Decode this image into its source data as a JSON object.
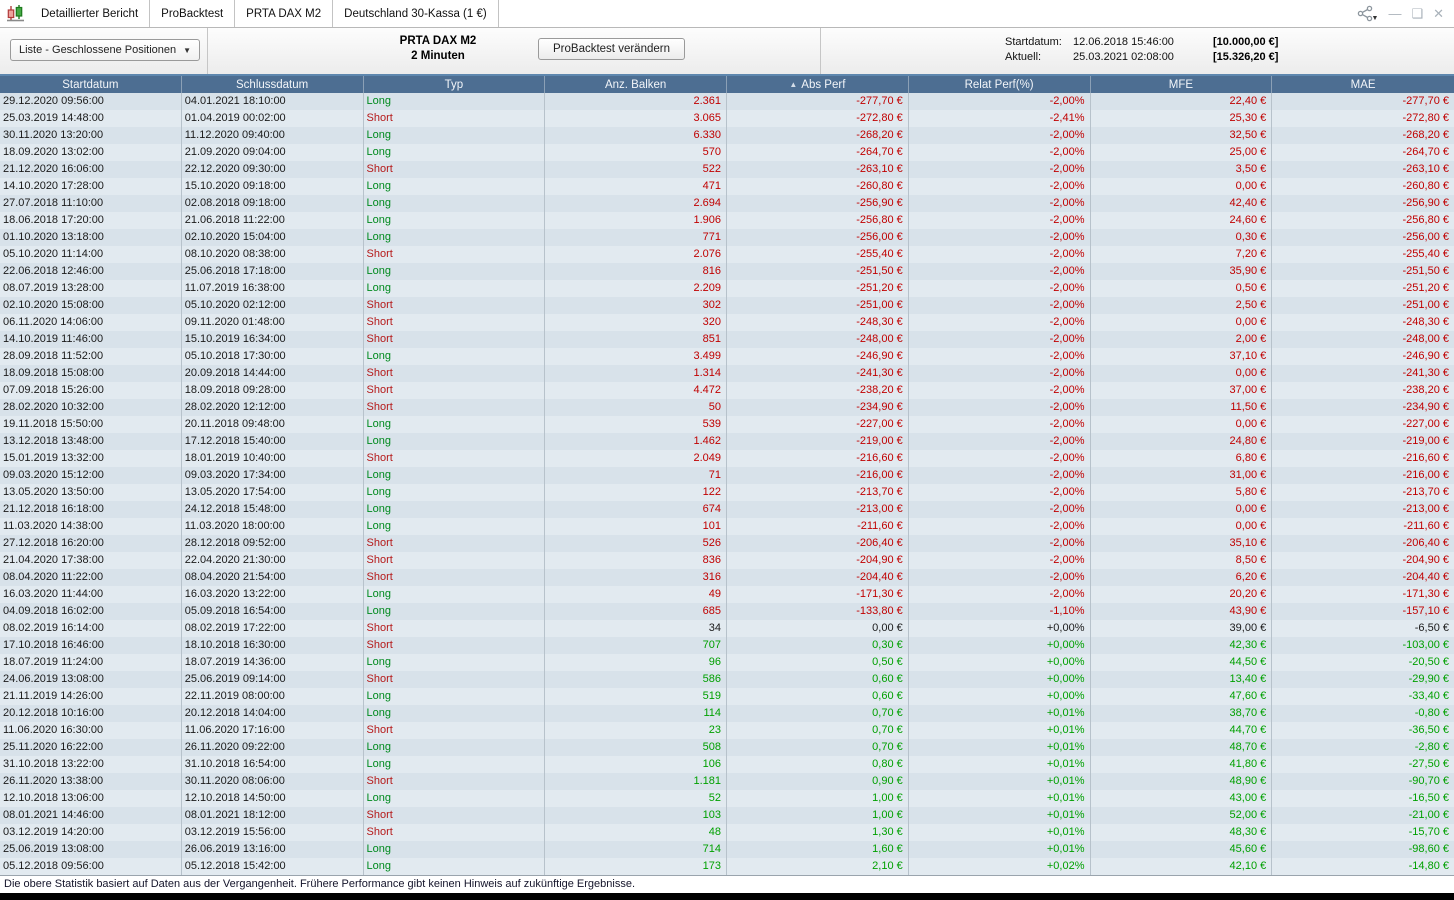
{
  "window": {
    "tabs": [
      {
        "label": "Detaillierter Bericht"
      },
      {
        "label": "ProBacktest"
      },
      {
        "label": "PRTA DAX M2"
      },
      {
        "label": "Deutschland 30-Kassa (1 €)"
      }
    ],
    "controls": {
      "minimize_glyph": "—",
      "maximize_glyph": "❑",
      "close_glyph": "✕",
      "share_caret": "▼"
    }
  },
  "toolbar": {
    "view_selector": {
      "label": "Liste - Geschlossene Positionen",
      "caret": "▼"
    },
    "system_name": "PRTA DAX M2",
    "timeframe": "2 Minuten",
    "edit_button_label": "ProBacktest verändern",
    "start": {
      "label": "Startdatum:",
      "datetime": "12.06.2018 15:46:00",
      "amount": "[10.000,00 €]"
    },
    "current": {
      "label": "Aktuell:",
      "datetime": "25.03.2021 02:08:00",
      "amount": "[15.326,20 €]"
    }
  },
  "table": {
    "columns": [
      {
        "label": "Startdatum"
      },
      {
        "label": "Schlussdatum"
      },
      {
        "label": "Typ"
      },
      {
        "label": "Anz. Balken"
      },
      {
        "label": "Abs Perf",
        "sort_indicator": "▲"
      },
      {
        "label": "Relat Perf(%)"
      },
      {
        "label": "MFE"
      },
      {
        "label": "MAE"
      }
    ],
    "rows": [
      {
        "start": "29.12.2020 09:56:00",
        "end": "04.01.2021 18:10:00",
        "type": "Long",
        "bars": "2.361",
        "abs_perf": "-277,70 €",
        "rel_perf": "-2,00%",
        "mfe": "22,40 €",
        "mae": "-277,70 €",
        "sign": "neg"
      },
      {
        "start": "25.03.2019 14:48:00",
        "end": "01.04.2019 00:02:00",
        "type": "Short",
        "bars": "3.065",
        "abs_perf": "-272,80 €",
        "rel_perf": "-2,41%",
        "mfe": "25,30 €",
        "mae": "-272,80 €",
        "sign": "neg"
      },
      {
        "start": "30.11.2020 13:20:00",
        "end": "11.12.2020 09:40:00",
        "type": "Long",
        "bars": "6.330",
        "abs_perf": "-268,20 €",
        "rel_perf": "-2,00%",
        "mfe": "32,50 €",
        "mae": "-268,20 €",
        "sign": "neg"
      },
      {
        "start": "18.09.2020 13:02:00",
        "end": "21.09.2020 09:04:00",
        "type": "Long",
        "bars": "570",
        "abs_perf": "-264,70 €",
        "rel_perf": "-2,00%",
        "mfe": "25,00 €",
        "mae": "-264,70 €",
        "sign": "neg"
      },
      {
        "start": "21.12.2020 16:06:00",
        "end": "22.12.2020 09:30:00",
        "type": "Short",
        "bars": "522",
        "abs_perf": "-263,10 €",
        "rel_perf": "-2,00%",
        "mfe": "3,50 €",
        "mae": "-263,10 €",
        "sign": "neg"
      },
      {
        "start": "14.10.2020 17:28:00",
        "end": "15.10.2020 09:18:00",
        "type": "Long",
        "bars": "471",
        "abs_perf": "-260,80 €",
        "rel_perf": "-2,00%",
        "mfe": "0,00 €",
        "mae": "-260,80 €",
        "sign": "neg"
      },
      {
        "start": "27.07.2018 11:10:00",
        "end": "02.08.2018 09:18:00",
        "type": "Long",
        "bars": "2.694",
        "abs_perf": "-256,90 €",
        "rel_perf": "-2,00%",
        "mfe": "42,40 €",
        "mae": "-256,90 €",
        "sign": "neg"
      },
      {
        "start": "18.06.2018 17:20:00",
        "end": "21.06.2018 11:22:00",
        "type": "Long",
        "bars": "1.906",
        "abs_perf": "-256,80 €",
        "rel_perf": "-2,00%",
        "mfe": "24,60 €",
        "mae": "-256,80 €",
        "sign": "neg"
      },
      {
        "start": "01.10.2020 13:18:00",
        "end": "02.10.2020 15:04:00",
        "type": "Long",
        "bars": "771",
        "abs_perf": "-256,00 €",
        "rel_perf": "-2,00%",
        "mfe": "0,30 €",
        "mae": "-256,00 €",
        "sign": "neg"
      },
      {
        "start": "05.10.2020 11:14:00",
        "end": "08.10.2020 08:38:00",
        "type": "Short",
        "bars": "2.076",
        "abs_perf": "-255,40 €",
        "rel_perf": "-2,00%",
        "mfe": "7,20 €",
        "mae": "-255,40 €",
        "sign": "neg"
      },
      {
        "start": "22.06.2018 12:46:00",
        "end": "25.06.2018 17:18:00",
        "type": "Long",
        "bars": "816",
        "abs_perf": "-251,50 €",
        "rel_perf": "-2,00%",
        "mfe": "35,90 €",
        "mae": "-251,50 €",
        "sign": "neg"
      },
      {
        "start": "08.07.2019 13:28:00",
        "end": "11.07.2019 16:38:00",
        "type": "Long",
        "bars": "2.209",
        "abs_perf": "-251,20 €",
        "rel_perf": "-2,00%",
        "mfe": "0,50 €",
        "mae": "-251,20 €",
        "sign": "neg"
      },
      {
        "start": "02.10.2020 15:08:00",
        "end": "05.10.2020 02:12:00",
        "type": "Short",
        "bars": "302",
        "abs_perf": "-251,00 €",
        "rel_perf": "-2,00%",
        "mfe": "2,50 €",
        "mae": "-251,00 €",
        "sign": "neg"
      },
      {
        "start": "06.11.2020 14:06:00",
        "end": "09.11.2020 01:48:00",
        "type": "Short",
        "bars": "320",
        "abs_perf": "-248,30 €",
        "rel_perf": "-2,00%",
        "mfe": "0,00 €",
        "mae": "-248,30 €",
        "sign": "neg"
      },
      {
        "start": "14.10.2019 11:46:00",
        "end": "15.10.2019 16:34:00",
        "type": "Short",
        "bars": "851",
        "abs_perf": "-248,00 €",
        "rel_perf": "-2,00%",
        "mfe": "2,00 €",
        "mae": "-248,00 €",
        "sign": "neg"
      },
      {
        "start": "28.09.2018 11:52:00",
        "end": "05.10.2018 17:30:00",
        "type": "Long",
        "bars": "3.499",
        "abs_perf": "-246,90 €",
        "rel_perf": "-2,00%",
        "mfe": "37,10 €",
        "mae": "-246,90 €",
        "sign": "neg"
      },
      {
        "start": "18.09.2018 15:08:00",
        "end": "20.09.2018 14:44:00",
        "type": "Short",
        "bars": "1.314",
        "abs_perf": "-241,30 €",
        "rel_perf": "-2,00%",
        "mfe": "0,00 €",
        "mae": "-241,30 €",
        "sign": "neg"
      },
      {
        "start": "07.09.2018 15:26:00",
        "end": "18.09.2018 09:28:00",
        "type": "Short",
        "bars": "4.472",
        "abs_perf": "-238,20 €",
        "rel_perf": "-2,00%",
        "mfe": "37,00 €",
        "mae": "-238,20 €",
        "sign": "neg"
      },
      {
        "start": "28.02.2020 10:32:00",
        "end": "28.02.2020 12:12:00",
        "type": "Short",
        "bars": "50",
        "abs_perf": "-234,90 €",
        "rel_perf": "-2,00%",
        "mfe": "11,50 €",
        "mae": "-234,90 €",
        "sign": "neg"
      },
      {
        "start": "19.11.2018 15:50:00",
        "end": "20.11.2018 09:48:00",
        "type": "Long",
        "bars": "539",
        "abs_perf": "-227,00 €",
        "rel_perf": "-2,00%",
        "mfe": "0,00 €",
        "mae": "-227,00 €",
        "sign": "neg"
      },
      {
        "start": "13.12.2018 13:48:00",
        "end": "17.12.2018 15:40:00",
        "type": "Long",
        "bars": "1.462",
        "abs_perf": "-219,00 €",
        "rel_perf": "-2,00%",
        "mfe": "24,80 €",
        "mae": "-219,00 €",
        "sign": "neg"
      },
      {
        "start": "15.01.2019 13:32:00",
        "end": "18.01.2019 10:40:00",
        "type": "Short",
        "bars": "2.049",
        "abs_perf": "-216,60 €",
        "rel_perf": "-2,00%",
        "mfe": "6,80 €",
        "mae": "-216,60 €",
        "sign": "neg"
      },
      {
        "start": "09.03.2020 15:12:00",
        "end": "09.03.2020 17:34:00",
        "type": "Long",
        "bars": "71",
        "abs_perf": "-216,00 €",
        "rel_perf": "-2,00%",
        "mfe": "31,00 €",
        "mae": "-216,00 €",
        "sign": "neg"
      },
      {
        "start": "13.05.2020 13:50:00",
        "end": "13.05.2020 17:54:00",
        "type": "Long",
        "bars": "122",
        "abs_perf": "-213,70 €",
        "rel_perf": "-2,00%",
        "mfe": "5,80 €",
        "mae": "-213,70 €",
        "sign": "neg"
      },
      {
        "start": "21.12.2018 16:18:00",
        "end": "24.12.2018 15:48:00",
        "type": "Long",
        "bars": "674",
        "abs_perf": "-213,00 €",
        "rel_perf": "-2,00%",
        "mfe": "0,00 €",
        "mae": "-213,00 €",
        "sign": "neg"
      },
      {
        "start": "11.03.2020 14:38:00",
        "end": "11.03.2020 18:00:00",
        "type": "Long",
        "bars": "101",
        "abs_perf": "-211,60 €",
        "rel_perf": "-2,00%",
        "mfe": "0,00 €",
        "mae": "-211,60 €",
        "sign": "neg"
      },
      {
        "start": "27.12.2018 16:20:00",
        "end": "28.12.2018 09:52:00",
        "type": "Short",
        "bars": "526",
        "abs_perf": "-206,40 €",
        "rel_perf": "-2,00%",
        "mfe": "35,10 €",
        "mae": "-206,40 €",
        "sign": "neg"
      },
      {
        "start": "21.04.2020 17:38:00",
        "end": "22.04.2020 21:30:00",
        "type": "Short",
        "bars": "836",
        "abs_perf": "-204,90 €",
        "rel_perf": "-2,00%",
        "mfe": "8,50 €",
        "mae": "-204,90 €",
        "sign": "neg"
      },
      {
        "start": "08.04.2020 11:22:00",
        "end": "08.04.2020 21:54:00",
        "type": "Short",
        "bars": "316",
        "abs_perf": "-204,40 €",
        "rel_perf": "-2,00%",
        "mfe": "6,20 €",
        "mae": "-204,40 €",
        "sign": "neg"
      },
      {
        "start": "16.03.2020 11:44:00",
        "end": "16.03.2020 13:22:00",
        "type": "Long",
        "bars": "49",
        "abs_perf": "-171,30 €",
        "rel_perf": "-2,00%",
        "mfe": "20,20 €",
        "mae": "-171,30 €",
        "sign": "neg"
      },
      {
        "start": "04.09.2018 16:02:00",
        "end": "05.09.2018 16:54:00",
        "type": "Long",
        "bars": "685",
        "abs_perf": "-133,80 €",
        "rel_perf": "-1,10%",
        "mfe": "43,90 €",
        "mae": "-157,10 €",
        "sign": "neg"
      },
      {
        "start": "08.02.2019 16:14:00",
        "end": "08.02.2019 17:22:00",
        "type": "Short",
        "bars": "34",
        "abs_perf": "0,00 €",
        "rel_perf": "+0,00%",
        "mfe": "39,00 €",
        "mae": "-6,50 €",
        "sign": "zero"
      },
      {
        "start": "17.10.2018 16:46:00",
        "end": "18.10.2018 16:30:00",
        "type": "Short",
        "bars": "707",
        "abs_perf": "0,30 €",
        "rel_perf": "+0,00%",
        "mfe": "42,30 €",
        "mae": "-103,00 €",
        "sign": "pos"
      },
      {
        "start": "18.07.2019 11:24:00",
        "end": "18.07.2019 14:36:00",
        "type": "Long",
        "bars": "96",
        "abs_perf": "0,50 €",
        "rel_perf": "+0,00%",
        "mfe": "44,50 €",
        "mae": "-20,50 €",
        "sign": "pos"
      },
      {
        "start": "24.06.2019 13:08:00",
        "end": "25.06.2019 09:14:00",
        "type": "Short",
        "bars": "586",
        "abs_perf": "0,60 €",
        "rel_perf": "+0,00%",
        "mfe": "13,40 €",
        "mae": "-29,90 €",
        "sign": "pos"
      },
      {
        "start": "21.11.2019 14:26:00",
        "end": "22.11.2019 08:00:00",
        "type": "Long",
        "bars": "519",
        "abs_perf": "0,60 €",
        "rel_perf": "+0,00%",
        "mfe": "47,60 €",
        "mae": "-33,40 €",
        "sign": "pos"
      },
      {
        "start": "20.12.2018 10:16:00",
        "end": "20.12.2018 14:04:00",
        "type": "Long",
        "bars": "114",
        "abs_perf": "0,70 €",
        "rel_perf": "+0,01%",
        "mfe": "38,70 €",
        "mae": "-0,80 €",
        "sign": "pos"
      },
      {
        "start": "11.06.2020 16:30:00",
        "end": "11.06.2020 17:16:00",
        "type": "Short",
        "bars": "23",
        "abs_perf": "0,70 €",
        "rel_perf": "+0,01%",
        "mfe": "44,70 €",
        "mae": "-36,50 €",
        "sign": "pos"
      },
      {
        "start": "25.11.2020 16:22:00",
        "end": "26.11.2020 09:22:00",
        "type": "Long",
        "bars": "508",
        "abs_perf": "0,70 €",
        "rel_perf": "+0,01%",
        "mfe": "48,70 €",
        "mae": "-2,80 €",
        "sign": "pos"
      },
      {
        "start": "31.10.2018 13:22:00",
        "end": "31.10.2018 16:54:00",
        "type": "Long",
        "bars": "106",
        "abs_perf": "0,80 €",
        "rel_perf": "+0,01%",
        "mfe": "41,80 €",
        "mae": "-27,50 €",
        "sign": "pos"
      },
      {
        "start": "26.11.2020 13:38:00",
        "end": "30.11.2020 08:06:00",
        "type": "Short",
        "bars": "1.181",
        "abs_perf": "0,90 €",
        "rel_perf": "+0,01%",
        "mfe": "48,90 €",
        "mae": "-90,70 €",
        "sign": "pos"
      },
      {
        "start": "12.10.2018 13:06:00",
        "end": "12.10.2018 14:50:00",
        "type": "Long",
        "bars": "52",
        "abs_perf": "1,00 €",
        "rel_perf": "+0,01%",
        "mfe": "43,00 €",
        "mae": "-16,50 €",
        "sign": "pos"
      },
      {
        "start": "08.01.2021 14:46:00",
        "end": "08.01.2021 18:12:00",
        "type": "Short",
        "bars": "103",
        "abs_perf": "1,00 €",
        "rel_perf": "+0,01%",
        "mfe": "52,00 €",
        "mae": "-21,00 €",
        "sign": "pos"
      },
      {
        "start": "03.12.2019 14:20:00",
        "end": "03.12.2019 15:56:00",
        "type": "Short",
        "bars": "48",
        "abs_perf": "1,30 €",
        "rel_perf": "+0,01%",
        "mfe": "48,30 €",
        "mae": "-15,70 €",
        "sign": "pos"
      },
      {
        "start": "25.06.2019 13:08:00",
        "end": "26.06.2019 13:16:00",
        "type": "Long",
        "bars": "714",
        "abs_perf": "1,60 €",
        "rel_perf": "+0,01%",
        "mfe": "45,60 €",
        "mae": "-98,60 €",
        "sign": "pos"
      },
      {
        "start": "05.12.2018 09:56:00",
        "end": "05.12.2018 15:42:00",
        "type": "Long",
        "bars": "173",
        "abs_perf": "2,10 €",
        "rel_perf": "+0,02%",
        "mfe": "42,10 €",
        "mae": "-14,80 €",
        "sign": "pos"
      }
    ]
  },
  "footer": {
    "disclaimer": "Die obere Statistik basiert auf Daten aus der Vergangenheit. Frühere Performance gibt keinen Hinweis auf zukünftige Ergebnisse."
  },
  "colors": {
    "negative": "#c00000",
    "positive": "#00a000",
    "neutral": "#1a1a1a",
    "long": "#008a1e",
    "short": "#b51a1a",
    "header_bg": "#4d6e92"
  }
}
